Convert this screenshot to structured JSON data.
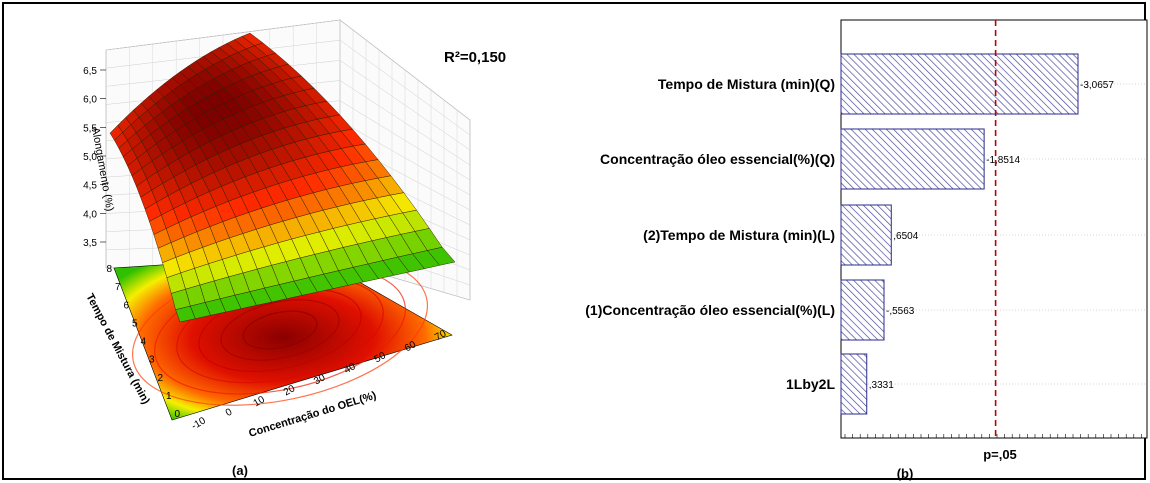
{
  "panel_a": {
    "caption": "(a)",
    "r2_label": "R²=0,150",
    "zlabel": "Alongamento (%)",
    "ylabel": "Tempo de Mistura (min)",
    "xlabel": "Concentração do OEL(%)",
    "z_ticks": [
      "3,5",
      "4,0",
      "4,5",
      "5,0",
      "5,5",
      "6,0",
      "6,5"
    ],
    "y_ticks": [
      "0",
      "1",
      "2",
      "3",
      "4",
      "5",
      "6",
      "7",
      "8"
    ],
    "x_ticks": [
      "-10",
      "0",
      "10",
      "20",
      "30",
      "40",
      "50",
      "60",
      "70"
    ],
    "colors": {
      "high": "#7a0000",
      "mid": "#ff2a00",
      "low": "#f2f200",
      "lowest": "#2fbf00"
    }
  },
  "panel_b": {
    "caption": "(b)",
    "threshold_label": "p=,05"
  },
  "chart_data": [
    {
      "type": "surface",
      "zlabel": "Alongamento (%)",
      "ylabel": "Tempo de Mistura (min)",
      "xlabel": "Concentração do OEL(%)",
      "zlim": [
        3.5,
        6.5
      ],
      "ylim": [
        0,
        8
      ],
      "xlim": [
        -10,
        70
      ],
      "annotation": "R²=0,150"
    },
    {
      "type": "bar",
      "orientation": "horizontal",
      "categories": [
        "Tempo de Mistura (min)(Q)",
        "Concentração óleo essencial(%)(Q)",
        "(2)Tempo de Mistura (min)(L)",
        "(1)Concentração óleo essencial(%)(L)",
        "1Lby2L"
      ],
      "values": [
        -3.0657,
        -1.8514,
        0.6504,
        -0.5563,
        0.3331
      ],
      "value_labels": [
        "-3,0657",
        "-1,8514",
        ",6504",
        "-,5563",
        ",3331"
      ],
      "magnitudes": [
        3.0657,
        1.8514,
        0.6504,
        0.5563,
        0.3331
      ],
      "threshold": 2.0,
      "threshold_label": "p=,05",
      "colors": {
        "bar_stroke": "#2a2a8c",
        "hatch": "#4a4aa0",
        "threshold_line": "#c00000"
      }
    }
  ]
}
